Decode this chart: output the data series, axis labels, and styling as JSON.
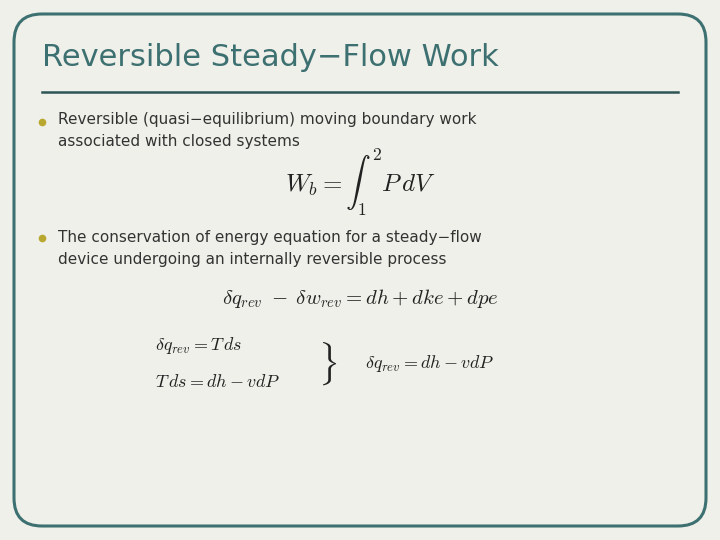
{
  "background_color": "#f0f0ea",
  "border_color": "#3d7070",
  "title": "Reversible Steady−Flow Work",
  "title_color": "#3d7070",
  "title_fontsize": 22,
  "underline_color": "#2d5555",
  "bullet_color": "#b8a830",
  "text_color": "#333333",
  "bullet1": "Reversible (quasi−equilibrium) moving boundary work\nassociated with closed systems",
  "bullet2": "The conservation of energy equation for a steady−flow\ndevice undergoing an internally reversible process",
  "eq1": "$W_b = \\int_1^2 P\\,dV$",
  "eq2": "$\\delta q_{rev} \\; - \\; \\delta w_{rev} = dh + dke + dpe$",
  "eq3a": "$\\delta q_{rev} = T\\,ds$",
  "eq3b": "$T\\,ds = dh - vdP$",
  "eq3c": "$\\delta q_{rev} = dh - vdP$",
  "eq_color": "#222222",
  "font_size_bullet": 11,
  "font_size_eq1": 18,
  "font_size_eq2": 15,
  "font_size_eq3": 13,
  "font_size_brace": 26
}
